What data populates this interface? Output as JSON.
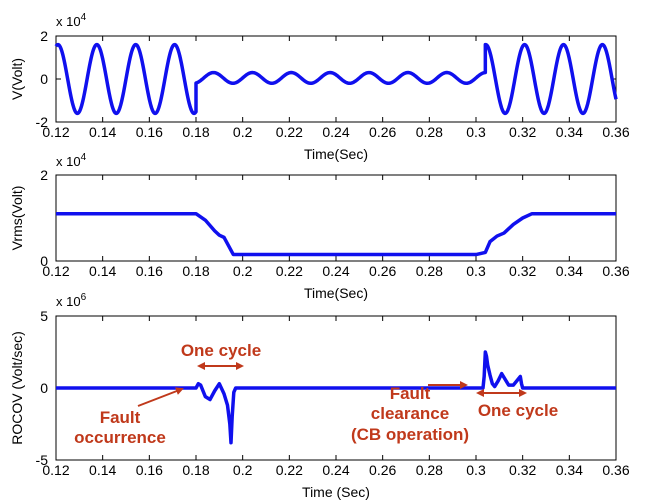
{
  "chart_data": [
    {
      "type": "line",
      "title": "",
      "xlabel": "Time(Sec)",
      "ylabel": "V(Volt)",
      "multiplier": "x 10",
      "exponent": "4",
      "xlim": [
        0.12,
        0.36
      ],
      "ylim": [
        -2,
        2
      ],
      "xticks": [
        "0.12",
        "0.14",
        "0.16",
        "0.18",
        "0.2",
        "0.22",
        "0.24",
        "0.26",
        "0.28",
        "0.3",
        "0.32",
        "0.34",
        "0.36"
      ],
      "yticks": [
        "2",
        "0",
        "-2"
      ],
      "grid": false,
      "color": "#1010ee",
      "series": [
        {
          "segments": [
            {
              "x_start": 0.12,
              "x_end": 0.18,
              "amplitude": 1.6,
              "frequency_hz": 60
            },
            {
              "x_start": 0.18,
              "x_end": 0.304,
              "amplitude": 0.25,
              "frequency_hz": 60,
              "offset": 0.05
            },
            {
              "x_start": 0.304,
              "x_end": 0.36,
              "amplitude": 1.6,
              "frequency_hz": 60
            }
          ]
        }
      ]
    },
    {
      "type": "line",
      "title": "",
      "xlabel": "Time(Sec)",
      "ylabel": "Vrms(Volt)",
      "multiplier": "x 10",
      "exponent": "4",
      "xlim": [
        0.12,
        0.36
      ],
      "ylim": [
        0,
        2
      ],
      "xticks": [
        "0.12",
        "0.14",
        "0.16",
        "0.18",
        "0.2",
        "0.22",
        "0.24",
        "0.26",
        "0.28",
        "0.3",
        "0.32",
        "0.34",
        "0.36"
      ],
      "yticks": [
        "2",
        "0"
      ],
      "grid": false,
      "color": "#1010ee",
      "series": [
        {
          "x": [
            0.12,
            0.18,
            0.184,
            0.188,
            0.19,
            0.192,
            0.194,
            0.196,
            0.3,
            0.304,
            0.306,
            0.309,
            0.312,
            0.316,
            0.32,
            0.324,
            0.36
          ],
          "y": [
            1.1,
            1.1,
            0.95,
            0.7,
            0.6,
            0.55,
            0.35,
            0.15,
            0.15,
            0.2,
            0.45,
            0.58,
            0.65,
            0.85,
            1.0,
            1.1,
            1.1
          ]
        }
      ]
    },
    {
      "type": "line",
      "title": "",
      "xlabel": "Time (Sec)",
      "ylabel": "ROCOV (Volt/sec)",
      "multiplier": "x 10",
      "exponent": "6",
      "xlim": [
        0.12,
        0.36
      ],
      "ylim": [
        -5,
        5
      ],
      "xticks": [
        "0.12",
        "0.14",
        "0.16",
        "0.18",
        "0.2",
        "0.22",
        "0.24",
        "0.26",
        "0.28",
        "0.3",
        "0.32",
        "0.34",
        "0.36"
      ],
      "yticks": [
        "5",
        "0",
        "-5"
      ],
      "grid": false,
      "color": "#1010ee",
      "series": [
        {
          "x": [
            0.12,
            0.18,
            0.181,
            0.182,
            0.184,
            0.186,
            0.188,
            0.19,
            0.192,
            0.1935,
            0.1945,
            0.195,
            0.1955,
            0.1962,
            0.197,
            0.303,
            0.3035,
            0.304,
            0.3045,
            0.305,
            0.306,
            0.307,
            0.308,
            0.3095,
            0.311,
            0.3125,
            0.314,
            0.316,
            0.318,
            0.319,
            0.3195,
            0.32,
            0.321,
            0.36
          ],
          "y": [
            0,
            0,
            0.3,
            0.2,
            -0.6,
            -0.8,
            -0.2,
            0.3,
            -0.4,
            -1.2,
            -2.5,
            -3.8,
            -2.0,
            -0.3,
            0,
            0,
            0.8,
            2.5,
            2.2,
            1.6,
            0.9,
            0.3,
            0.1,
            0.5,
            1.0,
            0.6,
            0.2,
            0.2,
            0.6,
            0.8,
            0.3,
            0,
            0,
            0
          ]
        }
      ],
      "annotations": {
        "cycle_left": "One cycle",
        "fault_occurrence_1": "Fault",
        "fault_occurrence_2": "occurrence",
        "fault_clearance_1": "Fault",
        "fault_clearance_2": "clearance",
        "fault_clearance_3": "(CB operation)",
        "cycle_right": "One cycle"
      },
      "annotation_color": "#c0391b"
    }
  ]
}
